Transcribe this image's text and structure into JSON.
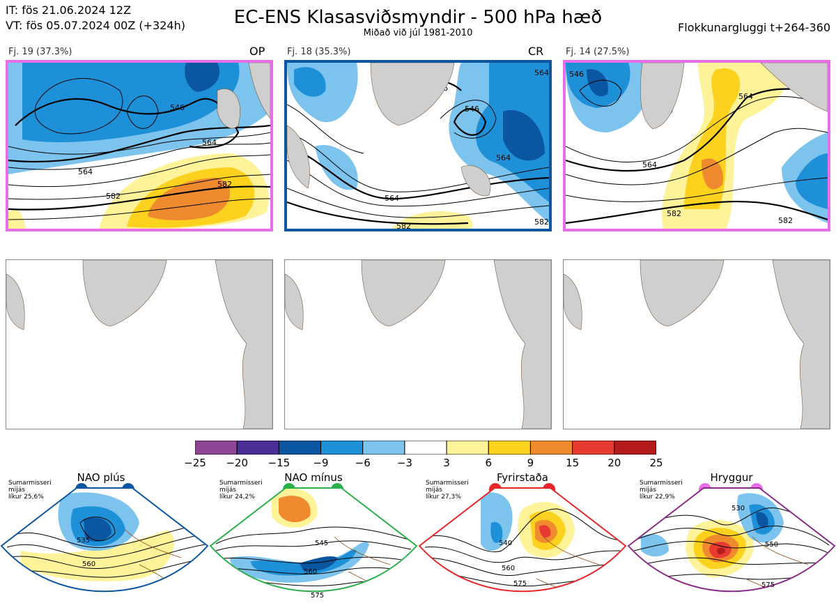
{
  "header": {
    "init_time": "IT: fös 21.06.2024 12Z",
    "valid_time": "VT: fös 05.07.2024 00Z  (+324h)",
    "title": "EC-ENS Klasasviðsmyndir - 500 hPa hæð",
    "subtitle": "Miðað við júl 1981-2010",
    "window": "Flokkunargluggi t+264-360"
  },
  "clusters": [
    {
      "label": "Fj. 19 (37.3%)",
      "code": "OP",
      "frame_color": "#e86ee8",
      "contours": [
        "546",
        "564",
        "564",
        "582",
        "582"
      ]
    },
    {
      "label": "Fj. 18 (35.3%)",
      "code": "CR",
      "frame_color": "#0a56a0",
      "contours": [
        "546",
        "564",
        "564",
        "546",
        "564",
        "582",
        "582"
      ]
    },
    {
      "label": "Fj. 14 (27.5%)",
      "code": "",
      "frame_color": "#e86ee8",
      "contours": [
        "546",
        "564",
        "564",
        "582",
        "582"
      ]
    }
  ],
  "colorbar": {
    "ticks": [
      "−25",
      "−20",
      "−15",
      "−9",
      "−6",
      "−3",
      "3",
      "6",
      "9",
      "15",
      "20",
      "25"
    ],
    "colors": [
      "#8e4596",
      "#4b2d96",
      "#0a56a0",
      "#1e90d8",
      "#7cc4ee",
      "#ffffff",
      "#fff39a",
      "#fdd21e",
      "#f08a2e",
      "#e83a30",
      "#b41c1c"
    ]
  },
  "regimes": [
    {
      "name": "NAO plús",
      "season": "Sumarmisseri",
      "freq_label": "mijás",
      "prob": "líkur 25,6%",
      "dot_color": "#0a56a0",
      "frame_color": "#0a56a0",
      "contours": [
        "535",
        "560"
      ]
    },
    {
      "name": "NAO mínus",
      "season": "Sumarmisseri",
      "freq_label": "mijás",
      "prob": "líkur 24,2%",
      "dot_color": "#2ab04a",
      "frame_color": "#2ab04a",
      "contours": [
        "545",
        "560",
        "575"
      ]
    },
    {
      "name": "Fyrirstaða",
      "season": "Sumarmisseri",
      "freq_label": "mijás",
      "prob": "líkur 27,3%",
      "dot_color": "#e8262a",
      "frame_color": "#e8262a",
      "contours": [
        "540",
        "560",
        "575"
      ]
    },
    {
      "name": "Hryggur",
      "season": "Sumarmisseri",
      "freq_label": "mijás",
      "prob": "líkur 22,9%",
      "dot_color": "#e86ee8",
      "frame_color": "#8a2b8a",
      "contours": [
        "530",
        "550",
        "575"
      ]
    }
  ]
}
